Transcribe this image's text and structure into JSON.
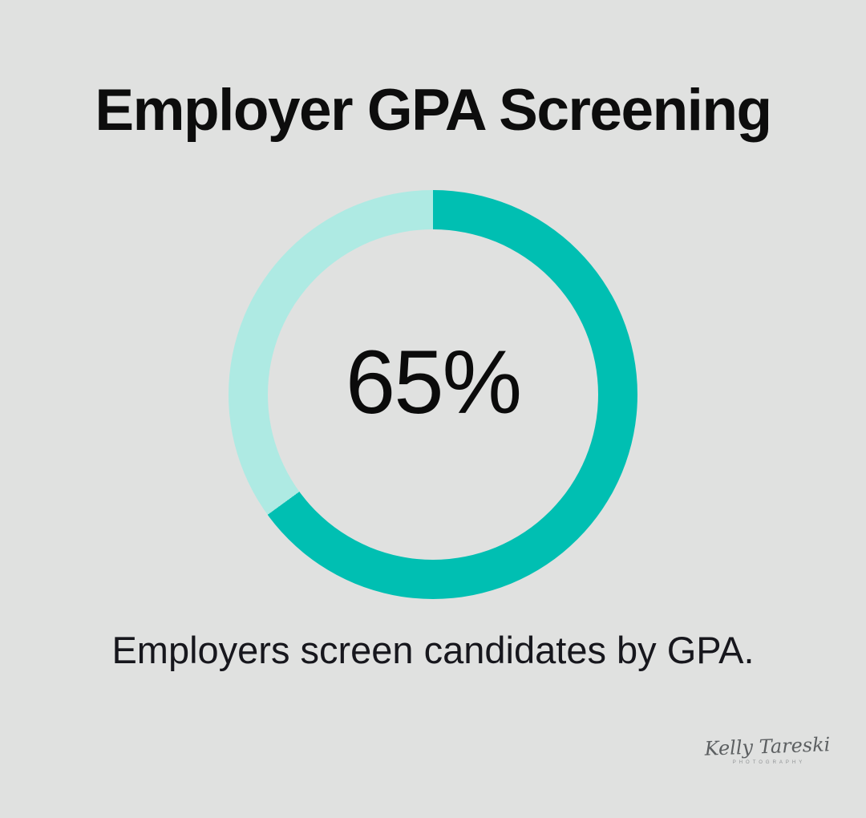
{
  "page": {
    "background_color": "#E0E1E0"
  },
  "header": {
    "title": "Employer GPA Screening"
  },
  "chart_data": {
    "type": "pie",
    "variant": "donut",
    "title": "Employer GPA Screening",
    "center_label": "65%",
    "start_angle_deg": 0,
    "direction": "clockwise",
    "legend_position": "none",
    "segments": [
      {
        "name": "Employers who screen candidates by GPA",
        "value": 65,
        "color": "#00BFB2"
      },
      {
        "name": "Remainder",
        "value": 35,
        "color": "#AEEAE3"
      }
    ]
  },
  "caption": {
    "text": "Employers screen candidates by GPA."
  },
  "watermark": {
    "name": "Kelly Tareski",
    "subtitle": "PHOTOGRAPHY"
  }
}
